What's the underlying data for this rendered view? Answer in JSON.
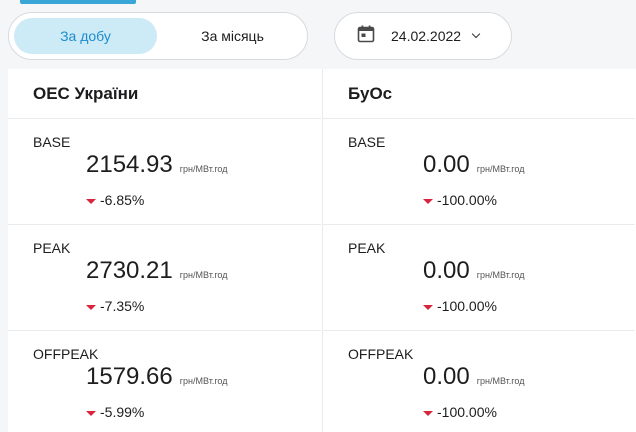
{
  "toolbar": {
    "period_day": "За добу",
    "period_month": "За місяць",
    "date": "24.02.2022",
    "calendar_icon": "calendar-icon"
  },
  "colors": {
    "accent": "#1d8ccc",
    "active_bg": "#cdeaf7",
    "negative": "#d8243c"
  },
  "markets": [
    {
      "title": "ОЕС України",
      "rows": [
        {
          "label": "BASE",
          "value": "2154.93",
          "unit": "грн/МВт.год",
          "change": "-6.85%"
        },
        {
          "label": "PEAK",
          "value": "2730.21",
          "unit": "грн/МВт.год",
          "change": "-7.35%"
        },
        {
          "label": "OFFPEAK",
          "value": "1579.66",
          "unit": "грн/МВт.год",
          "change": "-5.99%"
        }
      ]
    },
    {
      "title": "БуОс",
      "rows": [
        {
          "label": "BASE",
          "value": "0.00",
          "unit": "грн/МВт.год",
          "change": "-100.00%"
        },
        {
          "label": "PEAK",
          "value": "0.00",
          "unit": "грн/МВт.год",
          "change": "-100.00%"
        },
        {
          "label": "OFFPEAK",
          "value": "0.00",
          "unit": "грн/МВт.год",
          "change": "-100.00%"
        }
      ]
    }
  ]
}
